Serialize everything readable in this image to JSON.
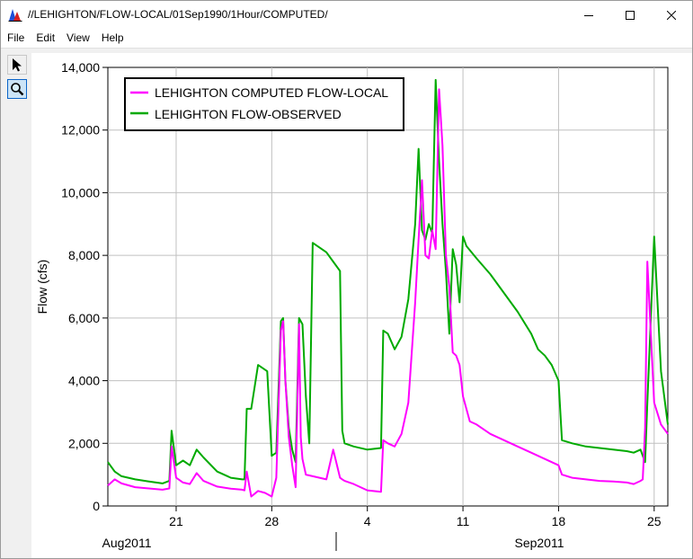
{
  "window": {
    "title": "//LEHIGHTON/FLOW-LOCAL/01Sep1990/1Hour/COMPUTED/",
    "icon": "app-chart-icon",
    "controls": [
      "minimize-icon",
      "maximize-icon",
      "close-icon"
    ]
  },
  "menu": {
    "items": [
      "File",
      "Edit",
      "View",
      "Help"
    ]
  },
  "toolbox": {
    "tools": [
      "pointer-arrow-icon",
      "zoom-magnifier-icon"
    ],
    "active": "zoom-magnifier-icon"
  },
  "colors": {
    "computed": "#ff00ff",
    "observed": "#00aa00",
    "grid": "#c0c0c0"
  },
  "chart_data": {
    "type": "line",
    "title": "",
    "xlabel": "",
    "ylabel": "Flow (cfs)",
    "ylim": [
      0,
      14000
    ],
    "yticks": [
      0,
      2000,
      4000,
      6000,
      8000,
      10000,
      12000,
      14000
    ],
    "ytick_labels": [
      "0",
      "2,000",
      "4,000",
      "6,000",
      "8,000",
      "10,000",
      "12,000",
      "14,000"
    ],
    "xlim": [
      "2011-08-16",
      "2011-09-26"
    ],
    "xticks": [
      "2011-08-21",
      "2011-08-28",
      "2011-09-04",
      "2011-09-11",
      "2011-09-18",
      "2011-09-25"
    ],
    "xtick_labels": [
      "21",
      "28",
      "4",
      "11",
      "18",
      "25"
    ],
    "month_labels": [
      "Aug2011",
      "Sep2011"
    ],
    "grid": true,
    "legend_position": "top-left",
    "series": [
      {
        "name": "LEHIGHTON COMPUTED FLOW-LOCAL",
        "color": "#ff00ff",
        "x": [
          "2011-08-16",
          "2011-08-16T12",
          "2011-08-17",
          "2011-08-18",
          "2011-08-19",
          "2011-08-20",
          "2011-08-20T12",
          "2011-08-20T16",
          "2011-08-21",
          "2011-08-21T12",
          "2011-08-22",
          "2011-08-22T12",
          "2011-08-23",
          "2011-08-24",
          "2011-08-25",
          "2011-08-25T20",
          "2011-08-26",
          "2011-08-26T04",
          "2011-08-26T12",
          "2011-08-27",
          "2011-08-27T12",
          "2011-08-27T16",
          "2011-08-28",
          "2011-08-28T08",
          "2011-08-28T16",
          "2011-08-28T20",
          "2011-08-29",
          "2011-08-29T06",
          "2011-08-29T12",
          "2011-08-29T18",
          "2011-08-30",
          "2011-08-30T03",
          "2011-08-30T06",
          "2011-08-30T12",
          "2011-08-31",
          "2011-08-31T12",
          "2011-09-01",
          "2011-09-01T12",
          "2011-09-02",
          "2011-09-02T04",
          "2011-09-02T08",
          "2011-09-03",
          "2011-09-04",
          "2011-09-05",
          "2011-09-05T04",
          "2011-09-05T12",
          "2011-09-06",
          "2011-09-06T12",
          "2011-09-07",
          "2011-09-07T12",
          "2011-09-07T18",
          "2011-09-08",
          "2011-09-08T06",
          "2011-09-08T12",
          "2011-09-08T18",
          "2011-09-09",
          "2011-09-09T06",
          "2011-09-09T12",
          "2011-09-09T18",
          "2011-09-10",
          "2011-09-10T06",
          "2011-09-10T12",
          "2011-09-10T18",
          "2011-09-11",
          "2011-09-11T12",
          "2011-09-12",
          "2011-09-13",
          "2011-09-14",
          "2011-09-15",
          "2011-09-16",
          "2011-09-16T12",
          "2011-09-17",
          "2011-09-17T12",
          "2011-09-18",
          "2011-09-18T06",
          "2011-09-19",
          "2011-09-20",
          "2011-09-21",
          "2011-09-22",
          "2011-09-23",
          "2011-09-23T12",
          "2011-09-24",
          "2011-09-24T04",
          "2011-09-24T08",
          "2011-09-24T12",
          "2011-09-25",
          "2011-09-25T12",
          "2011-09-26"
        ],
        "y": [
          650,
          850,
          720,
          600,
          560,
          520,
          560,
          1900,
          900,
          750,
          700,
          1050,
          800,
          620,
          550,
          520,
          500,
          1100,
          300,
          480,
          420,
          380,
          300,
          900,
          5600,
          5900,
          4000,
          2200,
          1300,
          600,
          5800,
          2200,
          1500,
          1000,
          950,
          900,
          850,
          1800,
          900,
          850,
          800,
          700,
          500,
          450,
          2100,
          2000,
          1900,
          2300,
          3300,
          6500,
          8500,
          10400,
          8000,
          7900,
          8800,
          8200,
          13300,
          11500,
          8000,
          7000,
          4900,
          4800,
          4500,
          3500,
          2700,
          2600,
          2300,
          2100,
          1900,
          1700,
          1600,
          1500,
          1400,
          1300,
          1000,
          900,
          850,
          800,
          780,
          750,
          700,
          800,
          850,
          2500,
          7800,
          3300,
          2600,
          2300
        ]
      },
      {
        "name": "LEHIGHTON  FLOW-OBSERVED",
        "color": "#00aa00",
        "x": [
          "2011-08-16",
          "2011-08-16T12",
          "2011-08-17",
          "2011-08-18",
          "2011-08-19",
          "2011-08-20",
          "2011-08-20T12",
          "2011-08-20T16",
          "2011-08-21",
          "2011-08-21T12",
          "2011-08-22",
          "2011-08-22T12",
          "2011-08-23",
          "2011-08-24",
          "2011-08-25",
          "2011-08-25T20",
          "2011-08-26",
          "2011-08-26T04",
          "2011-08-26T12",
          "2011-08-27",
          "2011-08-27T08",
          "2011-08-27T16",
          "2011-08-28",
          "2011-08-28T08",
          "2011-08-28T16",
          "2011-08-28T20",
          "2011-08-29",
          "2011-08-29T06",
          "2011-08-29T12",
          "2011-08-29T18",
          "2011-08-30",
          "2011-08-30T06",
          "2011-08-30T12",
          "2011-08-30T18",
          "2011-08-31",
          "2011-09-01",
          "2011-09-01T12",
          "2011-09-02",
          "2011-09-02T04",
          "2011-09-02T08",
          "2011-09-03",
          "2011-09-04",
          "2011-09-05",
          "2011-09-05T04",
          "2011-09-05T12",
          "2011-09-06",
          "2011-09-06T12",
          "2011-09-07",
          "2011-09-07T12",
          "2011-09-07T18",
          "2011-09-08",
          "2011-09-08T06",
          "2011-09-08T12",
          "2011-09-08T18",
          "2011-09-09",
          "2011-09-09T06",
          "2011-09-09T12",
          "2011-09-09T18",
          "2011-09-10",
          "2011-09-10T06",
          "2011-09-10T12",
          "2011-09-10T18",
          "2011-09-11",
          "2011-09-11T06",
          "2011-09-12",
          "2011-09-13",
          "2011-09-14",
          "2011-09-15",
          "2011-09-16",
          "2011-09-16T12",
          "2011-09-17",
          "2011-09-17T12",
          "2011-09-18",
          "2011-09-18T06",
          "2011-09-19",
          "2011-09-20",
          "2011-09-21",
          "2011-09-22",
          "2011-09-23",
          "2011-09-23T12",
          "2011-09-24",
          "2011-09-24T04",
          "2011-09-24T08",
          "2011-09-24T12",
          "2011-09-25",
          "2011-09-25T12",
          "2011-09-26"
        ],
        "y": [
          1400,
          1100,
          950,
          850,
          780,
          720,
          800,
          2400,
          1300,
          1450,
          1300,
          1800,
          1550,
          1100,
          900,
          850,
          850,
          3100,
          3100,
          4500,
          4400,
          4300,
          1600,
          1700,
          5900,
          6000,
          4000,
          2500,
          1800,
          1400,
          6000,
          5800,
          3500,
          2000,
          8400,
          8100,
          7800,
          7500,
          2400,
          2000,
          1900,
          1800,
          1850,
          5600,
          5500,
          5000,
          5400,
          6600,
          9000,
          11400,
          8800,
          8500,
          9000,
          8700,
          13600,
          11000,
          9000,
          7500,
          5500,
          8200,
          7700,
          6500,
          8600,
          8300,
          7900,
          7400,
          6800,
          6200,
          5500,
          5000,
          4800,
          4500,
          4000,
          2100,
          2000,
          1900,
          1850,
          1800,
          1750,
          1700,
          1800,
          1600,
          1400,
          3300,
          8600,
          4300,
          2600
        ]
      }
    ]
  }
}
